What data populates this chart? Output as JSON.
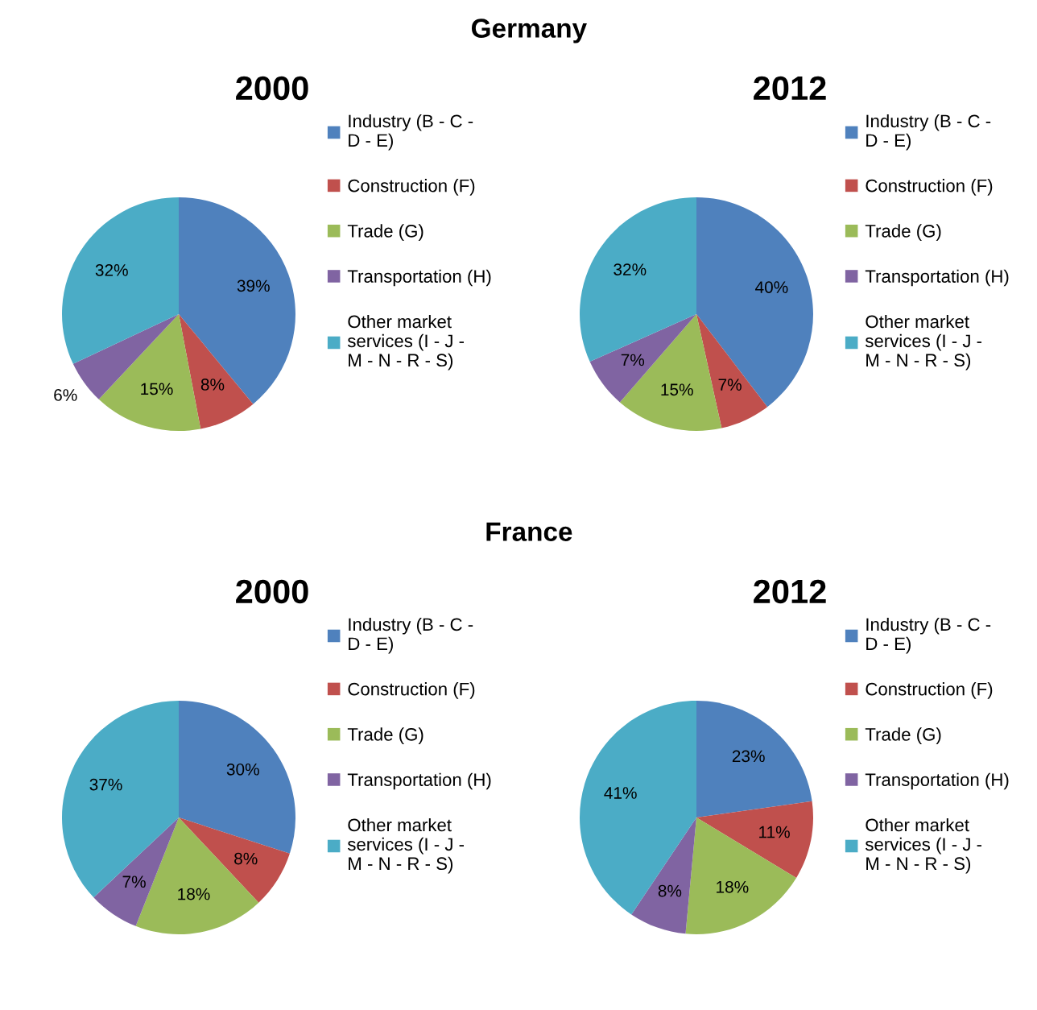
{
  "chart_data": [
    {
      "type": "pie",
      "title": "2000",
      "annotations": [
        "Germany"
      ],
      "categories": [
        "Industry (B - C - D - E)",
        "Construction (F)",
        "Trade (G)",
        "Transportation (H)",
        "Other market services (I - J - M - N - R - S)"
      ],
      "values": [
        39,
        8,
        15,
        6,
        32
      ],
      "value_labels": [
        "39%",
        "8%",
        "15%",
        "6%",
        "32%"
      ],
      "colors": [
        "#4f81bd",
        "#c0504d",
        "#9bbb59",
        "#8064a2",
        "#4bacc6"
      ],
      "legend": "right"
    },
    {
      "type": "pie",
      "title": "2012",
      "categories": [
        "Industry (B - C - D - E)",
        "Construction (F)",
        "Trade (G)",
        "Transportation (H)",
        "Other market services (I - J - M - N - R - S)"
      ],
      "values": [
        40,
        7,
        15,
        7,
        32
      ],
      "value_labels": [
        "40%",
        "7%",
        "15%",
        "7%",
        "32%"
      ],
      "colors": [
        "#4f81bd",
        "#c0504d",
        "#9bbb59",
        "#8064a2",
        "#4bacc6"
      ],
      "legend": "right"
    },
    {
      "type": "pie",
      "title": "2000",
      "annotations": [
        "France"
      ],
      "categories": [
        "Industry (B - C - D - E)",
        "Construction (F)",
        "Trade (G)",
        "Transportation (H)",
        "Other market services (I - J - M - N - R - S)"
      ],
      "values": [
        30,
        8,
        18,
        7,
        37
      ],
      "value_labels": [
        "30%",
        "8%",
        "18%",
        "7%",
        "37%"
      ],
      "colors": [
        "#4f81bd",
        "#c0504d",
        "#9bbb59",
        "#8064a2",
        "#4bacc6"
      ],
      "legend": "right"
    },
    {
      "type": "pie",
      "title": "2012",
      "categories": [
        "Industry (B - C - D - E)",
        "Construction (F)",
        "Trade (G)",
        "Transportation (H)",
        "Other market services (I - J - M - N - R - S)"
      ],
      "values": [
        23,
        11,
        18,
        8,
        41
      ],
      "value_labels": [
        "23%",
        "11%",
        "18%",
        "8%",
        "41%"
      ],
      "colors": [
        "#4f81bd",
        "#c0504d",
        "#9bbb59",
        "#8064a2",
        "#4bacc6"
      ],
      "legend": "right"
    }
  ]
}
